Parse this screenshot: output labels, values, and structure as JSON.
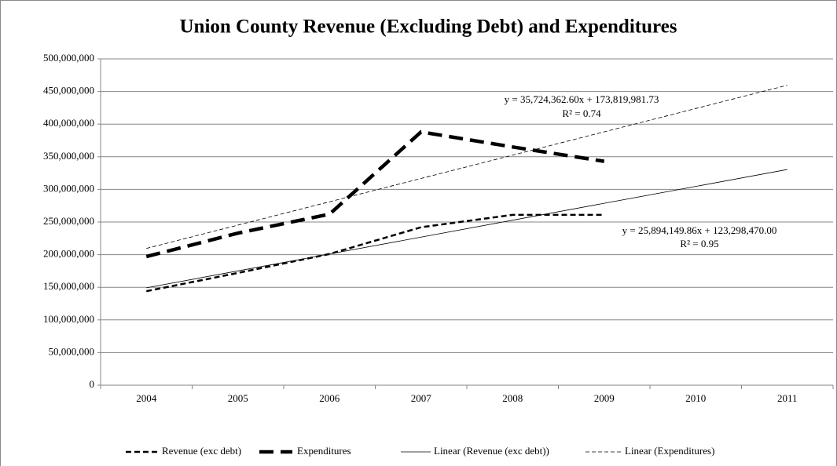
{
  "chart_data": {
    "type": "line",
    "title": "Union County Revenue (Excluding Debt) and Expenditures",
    "categories": [
      "2004",
      "2005",
      "2006",
      "2007",
      "2008",
      "2009",
      "2010",
      "2011"
    ],
    "series": [
      {
        "name": "Revenue (exc debt)",
        "color": "#000000",
        "style": "dashed",
        "width": 2.5,
        "values": [
          144000000,
          172000000,
          201000000,
          242000000,
          261000000,
          261000000,
          null,
          null
        ]
      },
      {
        "name": "Expenditures",
        "color": "#000000",
        "style": "long-dashed",
        "width": 4.5,
        "values": [
          197000000,
          233000000,
          262000000,
          388000000,
          365000000,
          343000000,
          null,
          null
        ]
      },
      {
        "name": "Linear (Revenue (exc debt))",
        "color": "#000000",
        "style": "solid",
        "width": 0.8,
        "values": [
          149190000,
          175090000,
          200980000,
          226880000,
          252770000,
          278660000,
          304560000,
          330450000
        ]
      },
      {
        "name": "Linear (Expenditures)",
        "color": "#000000",
        "style": "thin-dashed",
        "width": 0.8,
        "values": [
          209540000,
          245270000,
          280990000,
          316720000,
          352440000,
          388170000,
          423890000,
          459610000
        ]
      }
    ],
    "annotations": [
      "y = 35,724,362.60x + 173,819,981.73",
      "R² = 0.74",
      "y = 25,894,149.86x + 123,298,470.00",
      "R² = 0.95"
    ],
    "ylim": [
      0,
      500000000
    ],
    "yticks": [
      0,
      {
        "value": 50000000,
        "label": "50,000,000"
      },
      {
        "value": 100000000,
        "label": "100,000,000"
      },
      {
        "value": 150000000,
        "label": "150,000,000"
      },
      {
        "value": 200000000,
        "label": "200,000,000"
      },
      {
        "value": 250000000,
        "label": "250,000,000"
      },
      {
        "value": 300000000,
        "label": "300,000,000"
      },
      {
        "value": 350000000,
        "label": "350,000,000"
      },
      {
        "value": 400000000,
        "label": "400,000,000"
      },
      {
        "value": 450000000,
        "label": "450,000,000"
      },
      {
        "value": 500000000,
        "label": "500,000,000"
      }
    ],
    "grid": true,
    "legend": "bottom"
  }
}
